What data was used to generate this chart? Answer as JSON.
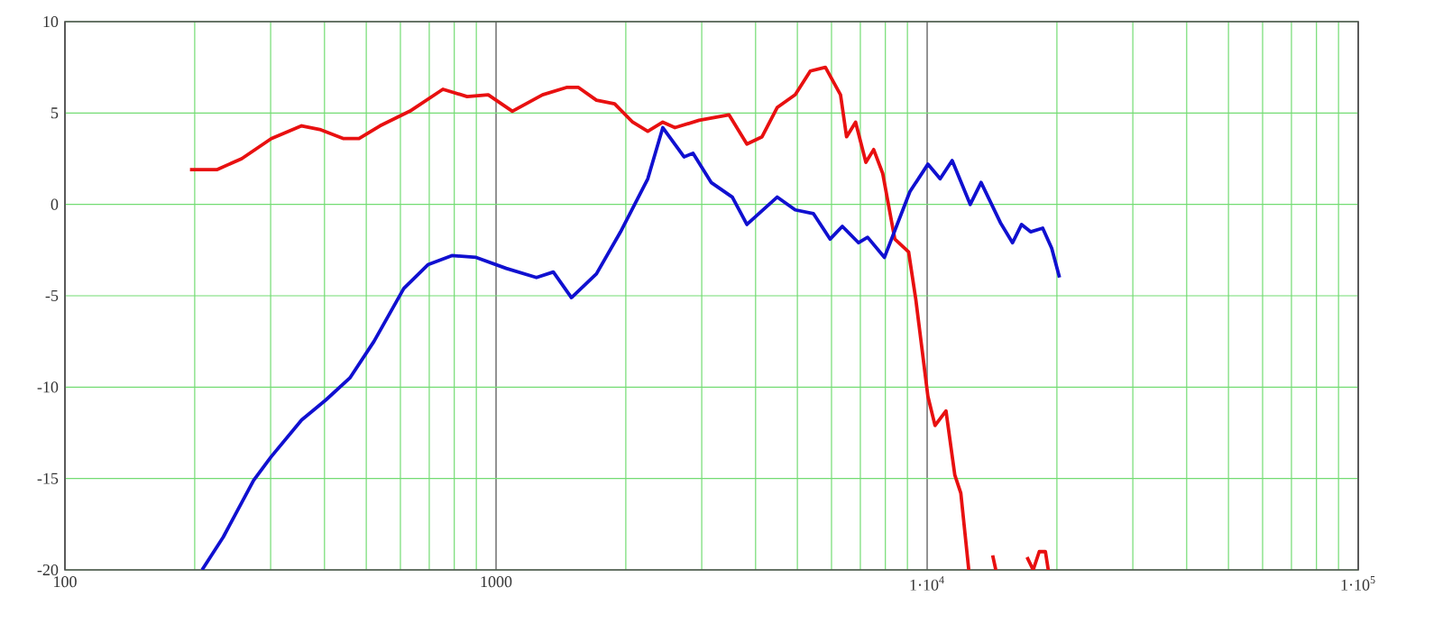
{
  "chart_data": {
    "type": "line",
    "log": "x",
    "grid": true,
    "marker": "none",
    "line_style": "solid",
    "xlim": [
      100,
      100000
    ],
    "ylim": [
      -20,
      10
    ],
    "xticks": [
      {
        "value": 100,
        "label": "100"
      },
      {
        "value": 1000,
        "label": "1000"
      },
      {
        "value": 10000,
        "label": "1·10$^{4}$"
      },
      {
        "value": 100000,
        "label": "1·10$^{5}$"
      }
    ],
    "yticks": [
      -20,
      -15,
      -10,
      -5,
      0,
      5,
      10
    ],
    "series": [
      {
        "color": "#e81010",
        "x": [
          195,
          225,
          257,
          301,
          354,
          390,
          443,
          481,
          538,
          631,
          753,
          857,
          959,
          1091,
          1282,
          1457,
          1553,
          1710,
          1884,
          2075,
          2249,
          2437,
          2600,
          2958,
          3470,
          3819,
          4140,
          4488,
          4943,
          5358,
          5808,
          6296,
          6503,
          6824,
          7210,
          7516,
          7887,
          8414,
          9057,
          9412,
          10040,
          10430,
          11060,
          11590,
          11970,
          12490,
          13960,
          14190,
          14430,
          16670,
          17050,
          17620,
          18200,
          18810,
          19100
        ],
        "values": [
          1.9,
          1.9,
          2.5,
          3.6,
          4.3,
          4.1,
          3.6,
          3.6,
          4.3,
          5.1,
          6.3,
          5.9,
          6.0,
          5.1,
          6.0,
          6.4,
          6.4,
          5.7,
          5.5,
          4.5,
          4.0,
          4.5,
          4.2,
          4.6,
          4.9,
          3.3,
          3.7,
          5.3,
          6.0,
          7.3,
          7.5,
          6.0,
          3.7,
          4.5,
          2.3,
          3.0,
          1.7,
          -1.9,
          -2.6,
          -5.2,
          -10.5,
          -12.1,
          -11.3,
          -14.8,
          -15.8,
          -20,
          null,
          -19.2,
          -20,
          null,
          -19.3,
          -20,
          -19,
          -19,
          -20
        ]
      },
      {
        "color": "#1010d0",
        "x": [
          208,
          233,
          274,
          301,
          354,
          403,
          458,
          521,
          611,
          695,
          790,
          899,
          1056,
          1241,
          1358,
          1496,
          1710,
          1945,
          2249,
          2437,
          2729,
          2864,
          3155,
          3533,
          3819,
          4488,
          4943,
          5445,
          5957,
          6357,
          6934,
          7277,
          7962,
          9120,
          10040,
          10720,
          11430,
          12590,
          13340,
          14790,
          15780,
          16560,
          17380,
          18540,
          19450,
          20280
        ],
        "values": [
          -20,
          -18.2,
          -15.1,
          -13.8,
          -11.8,
          -10.7,
          -9.5,
          -7.5,
          -4.6,
          -3.3,
          -2.8,
          -2.9,
          -3.5,
          -4.0,
          -3.7,
          -5.1,
          -3.8,
          -1.5,
          1.4,
          4.2,
          2.6,
          2.8,
          1.2,
          0.4,
          -1.1,
          0.4,
          -0.3,
          -0.5,
          -1.9,
          -1.2,
          -2.1,
          -1.8,
          -2.9,
          0.7,
          2.2,
          1.4,
          2.4,
          0.0,
          1.2,
          -1.0,
          -2.1,
          -1.1,
          -1.5,
          -1.3,
          -2.4,
          -4.0
        ]
      }
    ]
  }
}
